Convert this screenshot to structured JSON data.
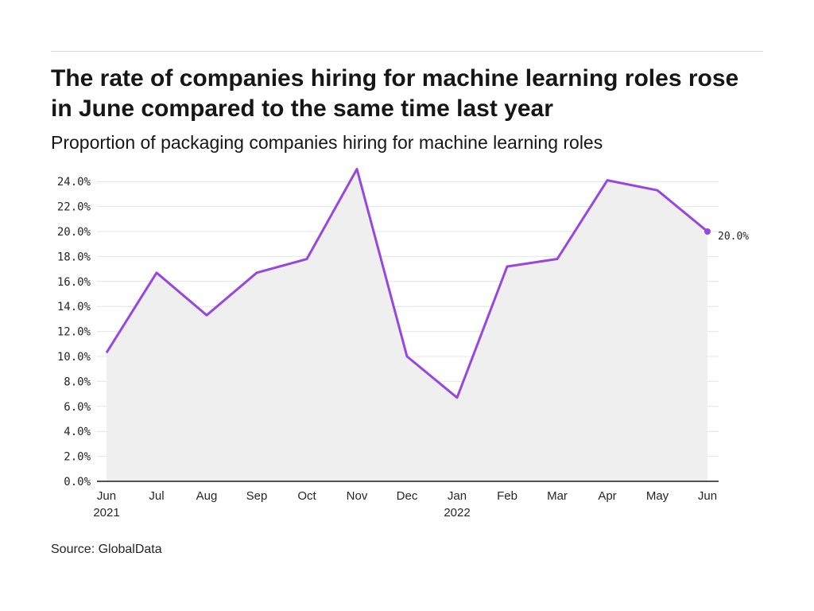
{
  "title": "The rate of companies hiring for machine learning roles rose in June compared to the same time last year",
  "subtitle": "Proportion of packaging companies hiring for machine learning roles",
  "source": "Source: GlobalData",
  "chart_data": {
    "type": "area",
    "title": "The rate of companies hiring for machine learning roles rose in June compared to the same time last year",
    "subtitle": "Proportion of packaging companies hiring for machine learning roles",
    "xlabel": "",
    "ylabel": "",
    "categories": [
      "Jun",
      "Jul",
      "Aug",
      "Sep",
      "Oct",
      "Nov",
      "Dec",
      "Jan",
      "Feb",
      "Mar",
      "Apr",
      "May",
      "Jun"
    ],
    "year_labels": {
      "0": "2021",
      "7": "2022"
    },
    "series": [
      {
        "values": [
          10.3,
          16.7,
          13.3,
          16.7,
          17.8,
          25.0,
          10.0,
          6.7,
          17.2,
          17.8,
          24.1,
          23.3,
          20.0
        ]
      }
    ],
    "ylim": [
      0,
      24
    ],
    "yticks": [
      "0.0%",
      "2.0%",
      "4.0%",
      "6.0%",
      "8.0%",
      "10.0%",
      "12.0%",
      "14.0%",
      "16.0%",
      "18.0%",
      "20.0%",
      "22.0%",
      "24.0%"
    ],
    "end_label": "20.0%",
    "grid": true,
    "colors": {
      "line": "#9747e0",
      "area": "#efefef",
      "grid": "#e4e4e4",
      "axis": "#1a1a1a"
    }
  }
}
